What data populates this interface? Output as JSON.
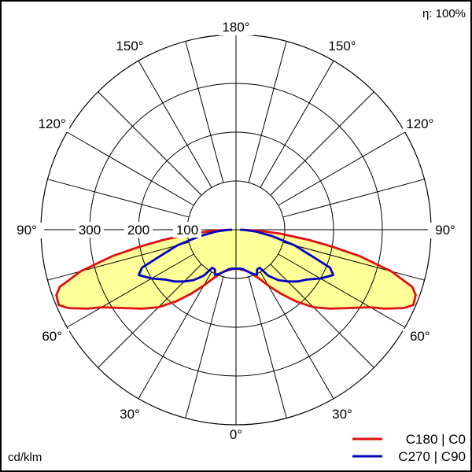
{
  "efficiency": "η: 100%",
  "unit_label": "cd/klm",
  "chart_data": {
    "type": "polar",
    "angle_labels": [
      {
        "angle": 0,
        "text": "0°",
        "side": "bottom"
      },
      {
        "angle": 30,
        "text": "30°",
        "side": "left"
      },
      {
        "angle": 30,
        "text": "30°",
        "side": "right"
      },
      {
        "angle": 60,
        "text": "60°",
        "side": "left"
      },
      {
        "angle": 60,
        "text": "60°",
        "side": "right"
      },
      {
        "angle": 90,
        "text": "90°",
        "side": "left"
      },
      {
        "angle": 90,
        "text": "90°",
        "side": "right"
      },
      {
        "angle": 120,
        "text": "120°",
        "side": "left"
      },
      {
        "angle": 120,
        "text": "120°",
        "side": "right"
      },
      {
        "angle": 150,
        "text": "150°",
        "side": "left"
      },
      {
        "angle": 150,
        "text": "150°",
        "side": "right"
      },
      {
        "angle": 180,
        "text": "180°",
        "side": "top"
      }
    ],
    "radial_ticks": [
      100,
      200,
      300
    ],
    "radial_tick_labels": [
      "100",
      "200",
      "300"
    ],
    "radial_max": 400,
    "spoke_step_deg": 15,
    "series": [
      {
        "name": "C180 | C0",
        "color": "#e01010",
        "angles": [
          0,
          5,
          10,
          15,
          20,
          25,
          30,
          35,
          40,
          45,
          50,
          55,
          60,
          62,
          65,
          67,
          70,
          72,
          75,
          78,
          80,
          82,
          85,
          88,
          90
        ],
        "values": [
          80,
          81,
          84,
          88,
          96,
          110,
          132,
          160,
          192,
          225,
          252,
          280,
          318,
          345,
          380,
          395,
          392,
          380,
          330,
          258,
          200,
          150,
          90,
          40,
          10
        ]
      },
      {
        "name": "C270 | C90",
        "color": "#0000c0",
        "angles": [
          0,
          5,
          10,
          15,
          20,
          25,
          28,
          32,
          35,
          40,
          45,
          50,
          55,
          60,
          65,
          68,
          70,
          75,
          80,
          85,
          88,
          90
        ],
        "values": [
          80,
          80,
          82,
          88,
          96,
          102,
          92,
          92,
          115,
          135,
          150,
          165,
          178,
          200,
          220,
          208,
          175,
          125,
          75,
          40,
          18,
          8
        ]
      }
    ],
    "fill_color": "#ffff99",
    "legend_position": "bottom-right"
  }
}
